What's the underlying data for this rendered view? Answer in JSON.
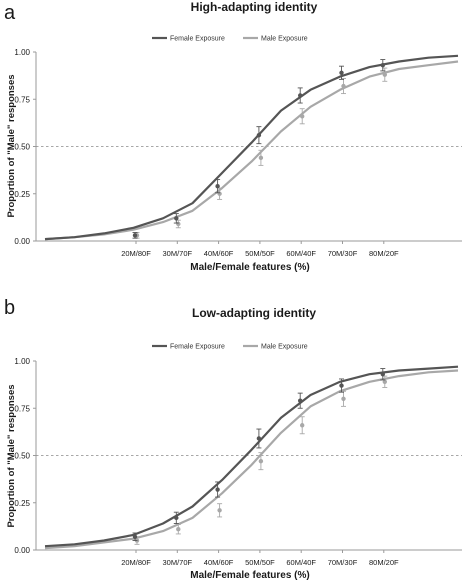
{
  "colors": {
    "female": "#555555",
    "male": "#a8a8a8",
    "axis": "#9a9a9a",
    "refline": "#8a8a8a",
    "text": "#1a1a1a"
  },
  "chart_data": [
    {
      "type": "line",
      "panel_label": "a",
      "title": "High-adapting identity",
      "xlabel": "Male/Female features (%)",
      "ylabel": "Proportion of \"Male\" responses",
      "ylim": [
        0,
        1
      ],
      "yticks": [
        0,
        0.25,
        0.5,
        0.75,
        1
      ],
      "ytick_labels": [
        "0.00",
        "0.25",
        "0.50",
        "0.75",
        "1.00"
      ],
      "categories": [
        "20M/80F",
        "30M/70F",
        "40M/60F",
        "50M/50F",
        "60M/40F",
        "70M/30F",
        "80M/20F"
      ],
      "reference_line_y": 0.5,
      "legend_position": "top",
      "series": [
        {
          "name": "Female Exposure",
          "color_key": "female",
          "points": [
            0.03,
            0.12,
            0.29,
            0.56,
            0.77,
            0.89,
            0.93
          ],
          "errors": [
            0.015,
            0.025,
            0.035,
            0.045,
            0.04,
            0.035,
            0.03
          ],
          "curve": [
            [
              0,
              0.01
            ],
            [
              1,
              0.02
            ],
            [
              2,
              0.04
            ],
            [
              3,
              0.07
            ],
            [
              4,
              0.12
            ],
            [
              5,
              0.2
            ],
            [
              6,
              0.36
            ],
            [
              7,
              0.52
            ],
            [
              8,
              0.69
            ],
            [
              9,
              0.8
            ],
            [
              10,
              0.87
            ],
            [
              11,
              0.92
            ],
            [
              12,
              0.95
            ],
            [
              13,
              0.97
            ],
            [
              14,
              0.98
            ]
          ]
        },
        {
          "name": "Male Exposure",
          "color_key": "male",
          "points": [
            0.03,
            0.09,
            0.25,
            0.44,
            0.66,
            0.82,
            0.88
          ],
          "errors": [
            0.015,
            0.02,
            0.03,
            0.04,
            0.04,
            0.04,
            0.035
          ],
          "curve": [
            [
              0,
              0.01
            ],
            [
              1,
              0.02
            ],
            [
              2,
              0.035
            ],
            [
              3,
              0.06
            ],
            [
              4,
              0.1
            ],
            [
              5,
              0.16
            ],
            [
              6,
              0.28
            ],
            [
              7,
              0.42
            ],
            [
              8,
              0.58
            ],
            [
              9,
              0.71
            ],
            [
              10,
              0.8
            ],
            [
              11,
              0.87
            ],
            [
              12,
              0.91
            ],
            [
              13,
              0.93
            ],
            [
              14,
              0.95
            ]
          ]
        }
      ]
    },
    {
      "type": "line",
      "panel_label": "b",
      "title": "Low-adapting identity",
      "xlabel": "Male/Female features (%)",
      "ylabel": "Proportion of \"Male\" responses",
      "ylim": [
        0,
        1
      ],
      "yticks": [
        0,
        0.25,
        0.5,
        0.75,
        1
      ],
      "ytick_labels": [
        "0.00",
        "0.25",
        "0.50",
        "0.75",
        "1.00"
      ],
      "categories": [
        "20M/80F",
        "30M/70F",
        "40M/60F",
        "50M/50F",
        "60M/40F",
        "70M/30F",
        "80M/20F"
      ],
      "reference_line_y": 0.5,
      "legend_position": "top",
      "series": [
        {
          "name": "Female Exposure",
          "color_key": "female",
          "points": [
            0.07,
            0.17,
            0.32,
            0.59,
            0.79,
            0.87,
            0.93
          ],
          "errors": [
            0.02,
            0.03,
            0.04,
            0.05,
            0.04,
            0.035,
            0.03
          ],
          "curve": [
            [
              0,
              0.02
            ],
            [
              1,
              0.03
            ],
            [
              2,
              0.05
            ],
            [
              3,
              0.08
            ],
            [
              4,
              0.14
            ],
            [
              5,
              0.23
            ],
            [
              6,
              0.37
            ],
            [
              7,
              0.53
            ],
            [
              8,
              0.7
            ],
            [
              9,
              0.82
            ],
            [
              10,
              0.89
            ],
            [
              11,
              0.93
            ],
            [
              12,
              0.95
            ],
            [
              13,
              0.96
            ],
            [
              14,
              0.97
            ]
          ]
        },
        {
          "name": "Male Exposure",
          "color_key": "male",
          "points": [
            0.05,
            0.11,
            0.21,
            0.47,
            0.66,
            0.8,
            0.89
          ],
          "errors": [
            0.02,
            0.025,
            0.035,
            0.045,
            0.045,
            0.04,
            0.03
          ],
          "curve": [
            [
              0,
              0.01
            ],
            [
              1,
              0.02
            ],
            [
              2,
              0.04
            ],
            [
              3,
              0.06
            ],
            [
              4,
              0.1
            ],
            [
              5,
              0.17
            ],
            [
              6,
              0.3
            ],
            [
              7,
              0.45
            ],
            [
              8,
              0.62
            ],
            [
              9,
              0.76
            ],
            [
              10,
              0.84
            ],
            [
              11,
              0.89
            ],
            [
              12,
              0.92
            ],
            [
              13,
              0.94
            ],
            [
              14,
              0.95
            ]
          ]
        }
      ]
    }
  ]
}
